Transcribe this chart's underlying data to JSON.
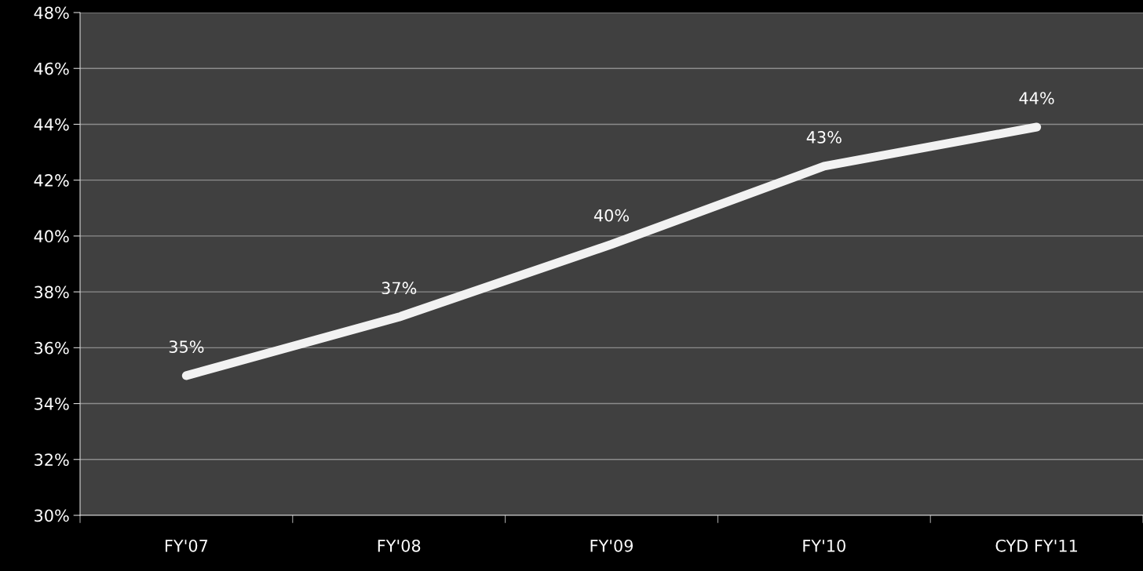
{
  "chart_data": {
    "type": "line",
    "categories": [
      "FY'07",
      "FY'08",
      "FY'09",
      "FY'10",
      "CYD FY'11"
    ],
    "series": [
      {
        "color": "#f2f2f2",
        "values": [
          35.0,
          37.1,
          39.7,
          42.5,
          43.9
        ],
        "value_labels": [
          "35%",
          "37%",
          "40%",
          "43%",
          "44%"
        ]
      }
    ],
    "ylim": [
      30,
      48
    ],
    "yticks": [
      {
        "value": 30,
        "label": "30%"
      },
      {
        "value": 32,
        "label": "32%"
      },
      {
        "value": 34,
        "label": "34%"
      },
      {
        "value": 36,
        "label": "36%"
      },
      {
        "value": 38,
        "label": "38%"
      },
      {
        "value": 40,
        "label": "40%"
      },
      {
        "value": 42,
        "label": "42%"
      },
      {
        "value": 44,
        "label": "44%"
      },
      {
        "value": 46,
        "label": "46%"
      },
      {
        "value": 48,
        "label": "48%"
      }
    ],
    "grid": "y",
    "line_style": "solid"
  }
}
